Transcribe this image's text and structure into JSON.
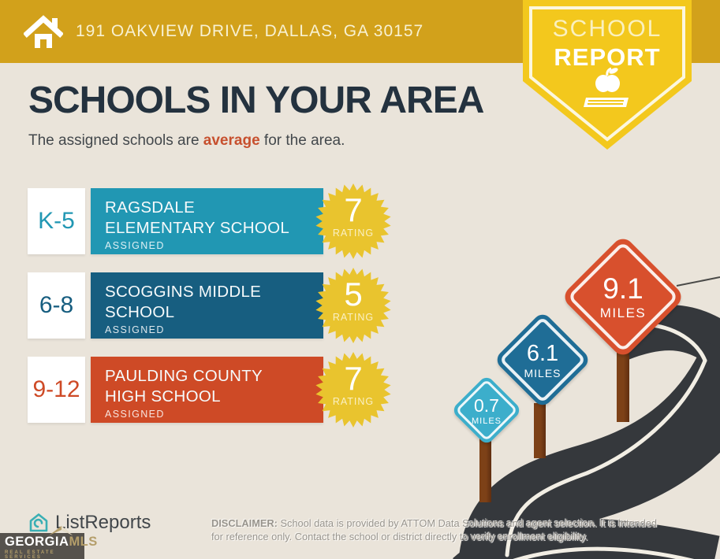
{
  "header": {
    "address": "191 OAKVIEW DRIVE, DALLAS, GA 30157"
  },
  "badge": {
    "line1": "SCHOOL",
    "line2": "REPORT"
  },
  "title": "SCHOOLS IN YOUR AREA",
  "subtitle": {
    "prefix": "The assigned schools are ",
    "highlight": "average",
    "suffix": " for the area."
  },
  "schools": [
    {
      "grades": "K-5",
      "name": "RAGSDALE ELEMENTARY SCHOOL",
      "status": "ASSIGNED",
      "rating": "7",
      "rating_label": "RATING",
      "distance": "0.7",
      "distance_unit": "MILES"
    },
    {
      "grades": "6-8",
      "name": "SCOGGINS MIDDLE SCHOOL",
      "status": "ASSIGNED",
      "rating": "5",
      "rating_label": "RATING",
      "distance": "6.1",
      "distance_unit": "MILES"
    },
    {
      "grades": "9-12",
      "name": "PAULDING COUNTY HIGH SCHOOL",
      "status": "ASSIGNED",
      "rating": "7",
      "rating_label": "RATING",
      "distance": "9.1",
      "distance_unit": "MILES"
    }
  ],
  "footer": {
    "brand": "ListReports",
    "mls_name_a": "GEORGIA",
    "mls_name_b": "MLS",
    "mls_tagline": "REAL ESTATE SERVICES",
    "disclaimer_label": "DISCLAIMER:",
    "disclaimer_line1": " School data is provided by ATTOM Data Solutions and agent selection. It is intended",
    "disclaimer_line2": "for reference only. Contact the school or district directly to verify enrollment eligibility."
  },
  "colors": {
    "header_gold": "#D2A11B",
    "badge_yellow": "#F3C81D",
    "background_cream": "#EAE4DA",
    "title_navy": "#24323F",
    "accent_orange": "#C7502E",
    "elementary_teal": "#2197B3",
    "middle_blue": "#175E80",
    "high_red": "#CE4A26",
    "seal_yellow": "#E9C42E",
    "road_charcoal": "#35383C",
    "post_brown": "#7D4117",
    "sign_small_blue": "#3CAECB",
    "sign_medium_blue": "#1F6D96",
    "sign_large_red": "#D8502D"
  }
}
